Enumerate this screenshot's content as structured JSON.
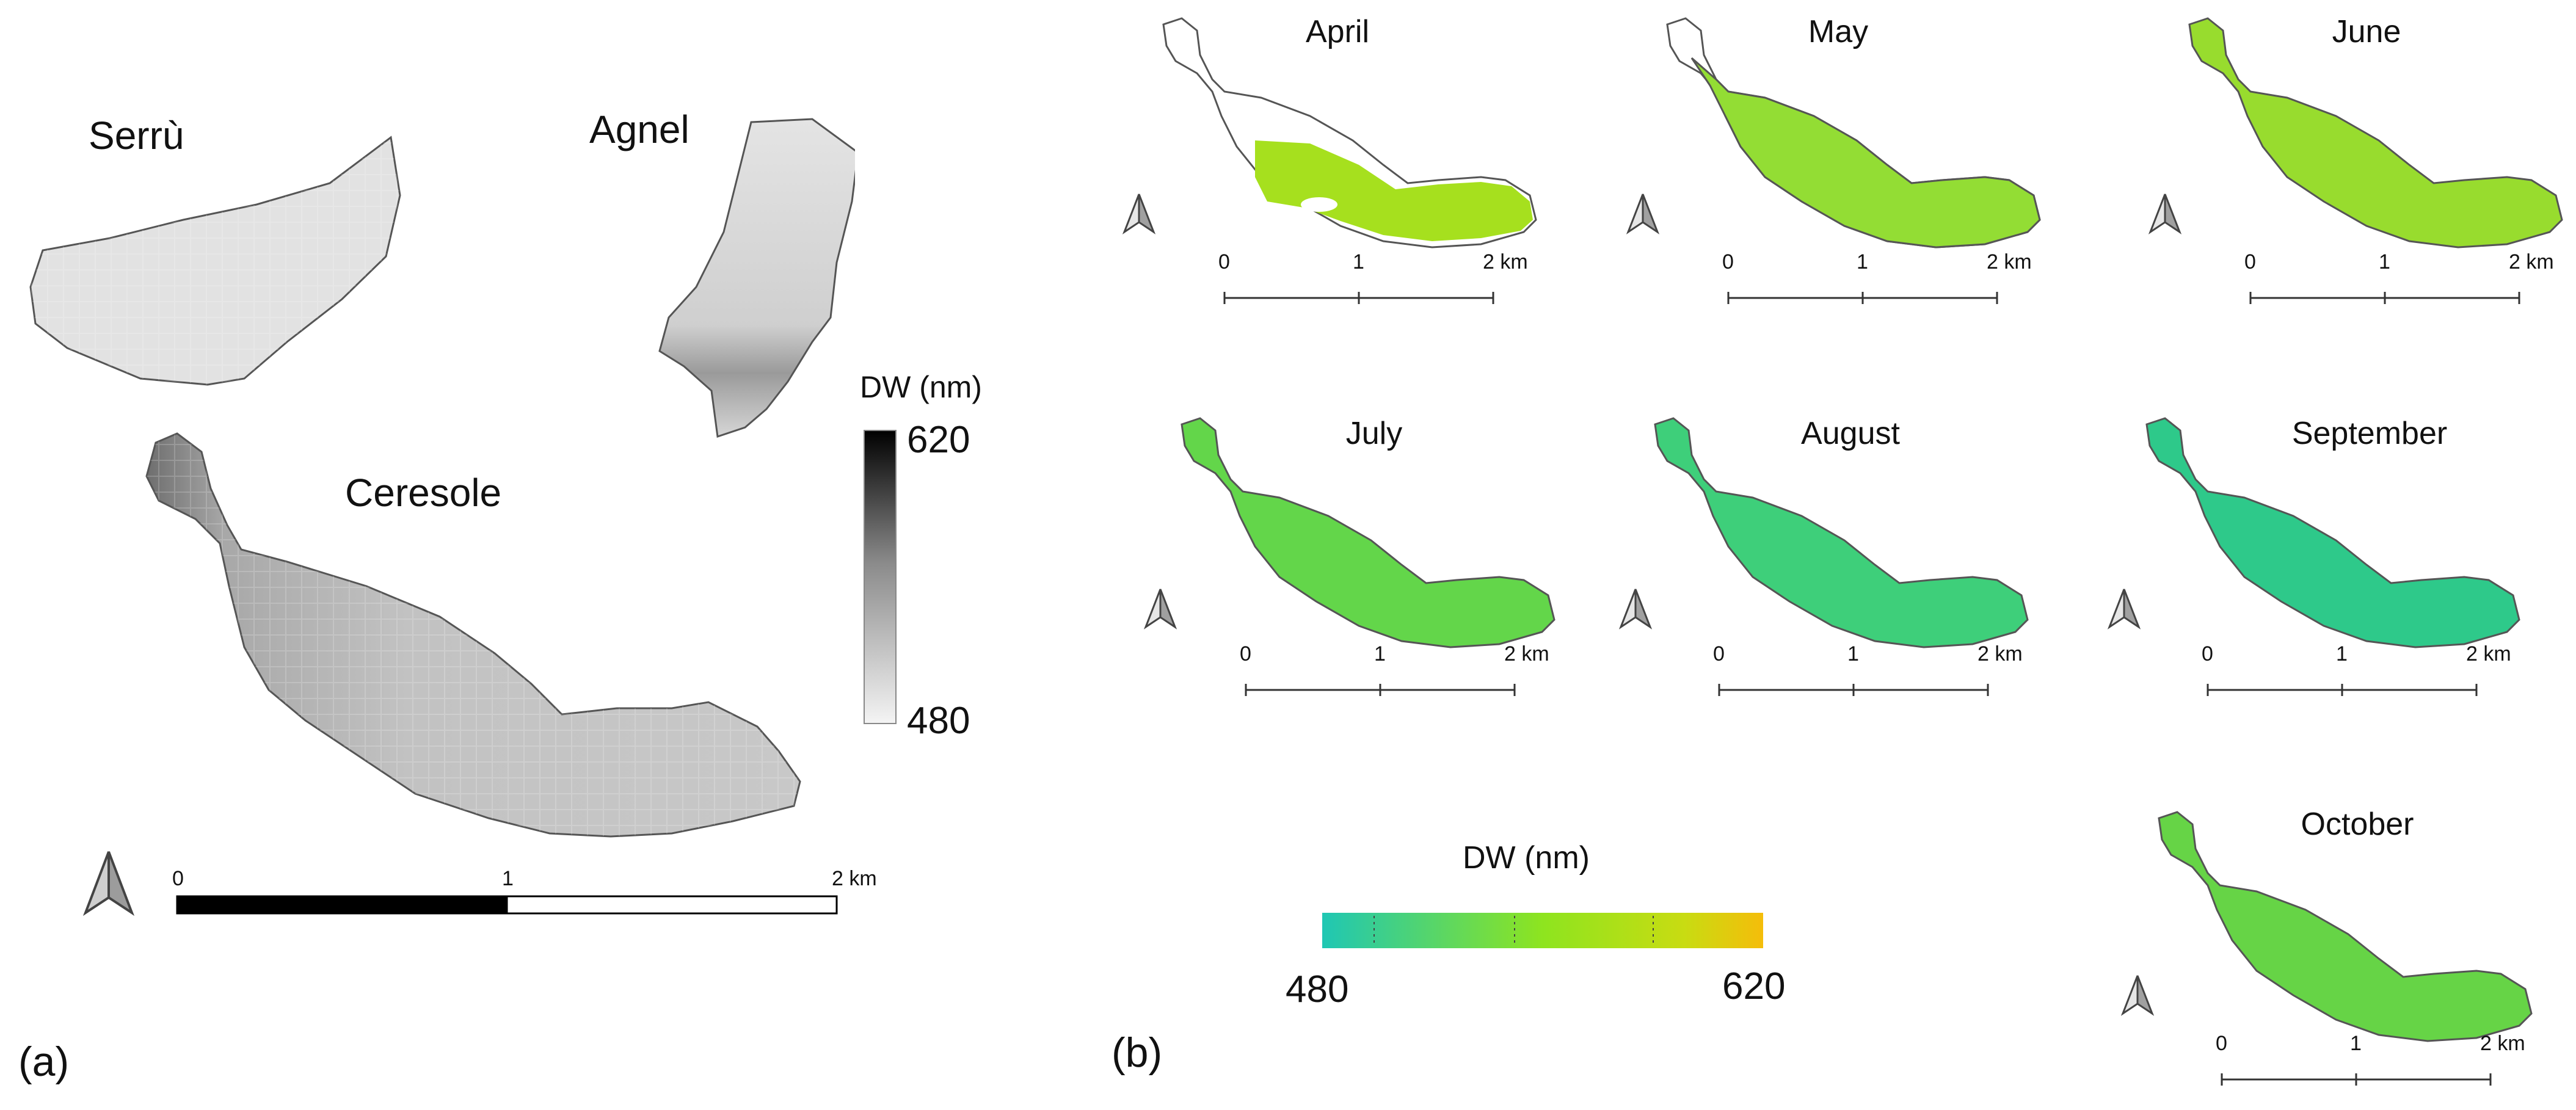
{
  "panel_a": {
    "label": "(a)",
    "lakes": [
      "Serrù",
      "Agnel",
      "Ceresole"
    ],
    "legend": {
      "title": "DW (nm)",
      "max": "620",
      "min": "480"
    },
    "scale": {
      "ticks": [
        "0",
        "1",
        "2 km"
      ]
    }
  },
  "panel_b": {
    "label": "(b)",
    "months": [
      "April",
      "May",
      "June",
      "July",
      "August",
      "September",
      "October"
    ],
    "scale": {
      "ticks": [
        "0",
        "1",
        "2 km"
      ]
    },
    "legend": {
      "title": "DW (nm)",
      "min": "480",
      "max": "620"
    }
  },
  "colors": {
    "lake_outline": "#555555",
    "map_a_fill_light": "#e8e8e8",
    "map_a_fill_mid": "#bdbdbd",
    "colorbar_low": "#1fc7b4",
    "colorbar_mid": "#8ee41f",
    "colorbar_high": "#f5bd0a"
  }
}
